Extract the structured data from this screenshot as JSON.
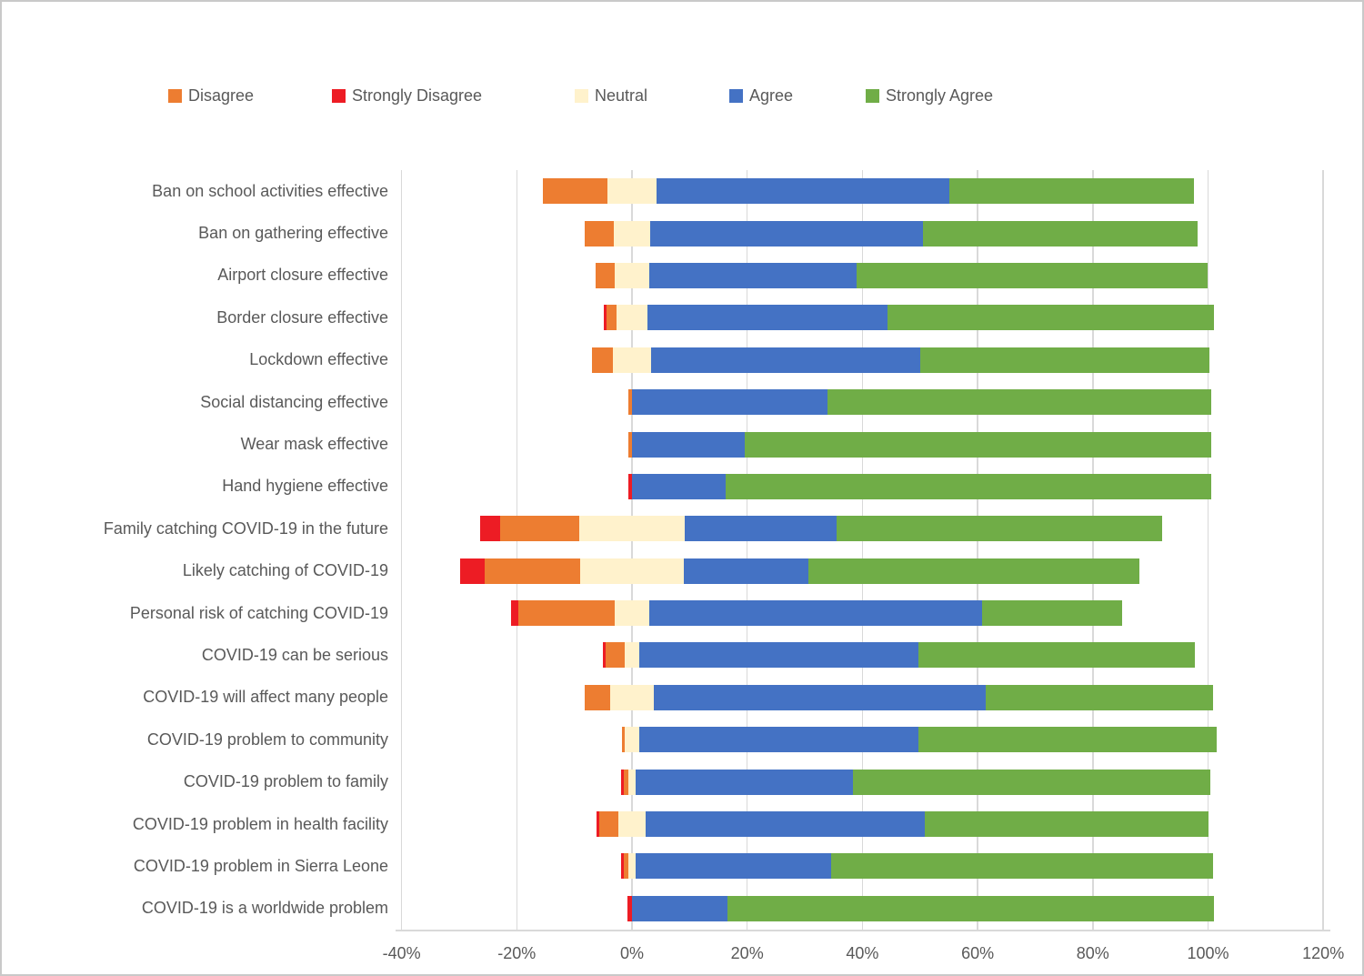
{
  "chart_data": {
    "type": "bar",
    "variant": "diverging-stacked-horizontal",
    "title": "",
    "xlabel": "",
    "ylabel": "",
    "categories": [
      "Ban on school activities effective",
      "Ban on gathering effective",
      "Airport closure effective",
      "Border closure effective",
      "Lockdown effective",
      "Social distancing effective",
      "Wear mask effective",
      "Hand hygiene effective",
      "Family catching COVID-19 in the future",
      "Likely catching of COVID-19",
      "Personal risk of catching COVID-19",
      "COVID-19 can be serious",
      "COVID-19 will affect many people",
      "COVID-19 problem to community",
      "COVID-19 problem to family",
      "COVID-19 problem in health facility",
      "COVID-19 problem in Sierra Leone",
      "COVID-19 is a worldwide problem"
    ],
    "series": [
      {
        "name": "Disagree",
        "color": "#ed7d31",
        "values": [
          11.2,
          5.0,
          3.3,
          1.7,
          3.6,
          0.7,
          0.7,
          0,
          13.8,
          16.6,
          16.7,
          3.4,
          4.4,
          0.5,
          0.8,
          3.4,
          0.8,
          0
        ]
      },
      {
        "name": "Strongly Disagree",
        "color": "#ed1c24",
        "values": [
          0,
          0,
          0,
          0.5,
          0,
          0,
          0,
          0.7,
          3.4,
          4.3,
          1.3,
          0.4,
          0,
          0,
          0.5,
          0.4,
          0.5,
          0.8
        ]
      },
      {
        "name": "Neutral",
        "color": "#fff2cc",
        "values": [
          8.5,
          6.4,
          6.0,
          5.4,
          6.6,
          0,
          0,
          0,
          18.3,
          17.9,
          6.1,
          2.5,
          7.6,
          2.4,
          1.2,
          4.6,
          1.2,
          0
        ]
      },
      {
        "name": "Agree",
        "color": "#4472c4",
        "values": [
          50.8,
          47.3,
          36.0,
          41.7,
          46.8,
          34.0,
          19.5,
          16.3,
          26.4,
          21.6,
          57.8,
          48.5,
          57.6,
          48.6,
          37.8,
          48.5,
          33.9,
          16.5
        ]
      },
      {
        "name": "Strongly Agree",
        "color": "#70ad47",
        "values": [
          42.5,
          47.7,
          61.0,
          56.7,
          50.1,
          66.5,
          81.0,
          84.2,
          56.5,
          57.5,
          24.3,
          48.0,
          39.5,
          51.7,
          62.0,
          49.3,
          66.3,
          84.5
        ]
      }
    ],
    "stack_order": [
      "Strongly Disagree",
      "Disagree",
      "Neutral",
      "Agree",
      "Strongly Agree"
    ],
    "neutral_centered_on_zero": true,
    "x_ticks": [
      "-40%",
      "-20%",
      "0%",
      "20%",
      "40%",
      "60%",
      "80%",
      "100%",
      "120%"
    ],
    "x_tick_values": [
      -40,
      -20,
      0,
      20,
      40,
      60,
      80,
      100,
      120
    ],
    "xlim": [
      -40,
      120
    ],
    "grid": "vertical",
    "legend_position": "top",
    "text_color": "#595959",
    "gridline_color": "#d9d9d9"
  }
}
